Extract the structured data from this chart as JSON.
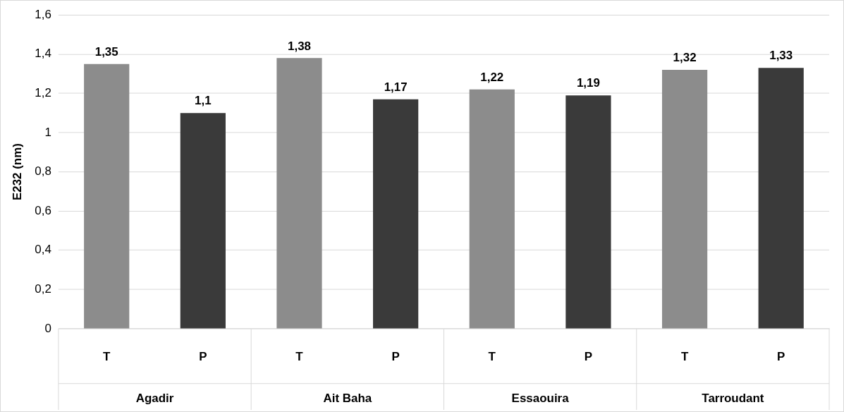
{
  "chart_data": {
    "type": "bar",
    "ylabel": "E232 (nm)",
    "categories": [
      "T",
      "P",
      "T",
      "P",
      "T",
      "P",
      "T",
      "P"
    ],
    "values": [
      1.35,
      1.1,
      1.38,
      1.17,
      1.22,
      1.19,
      1.32,
      1.33
    ],
    "colors": [
      "#8c8c8c",
      "#3a3a3a",
      "#8c8c8c",
      "#3a3a3a",
      "#8c8c8c",
      "#3a3a3a",
      "#8c8c8c",
      "#3a3a3a"
    ],
    "value_labels": [
      "1,35",
      "1,1",
      "1,38",
      "1,17",
      "1,22",
      "1,19",
      "1,32",
      "1,33"
    ],
    "annotations": [
      "Agadir",
      "Ait Baha",
      "Essaouira",
      "Tarroudant"
    ],
    "ylim": [
      0,
      1.6
    ],
    "yticks": [
      {
        "value": 0,
        "label": "0"
      },
      {
        "value": 0.2,
        "label": "0,2"
      },
      {
        "value": 0.4,
        "label": "0,4"
      },
      {
        "value": 0.6,
        "label": "0,6"
      },
      {
        "value": 0.8,
        "label": "0,8"
      },
      {
        "value": 1,
        "label": "1"
      },
      {
        "value": 1.2,
        "label": "1,2"
      },
      {
        "value": 1.4,
        "label": "1,4"
      },
      {
        "value": 1.6,
        "label": "1,6"
      }
    ],
    "grid": "y",
    "legend": false
  }
}
